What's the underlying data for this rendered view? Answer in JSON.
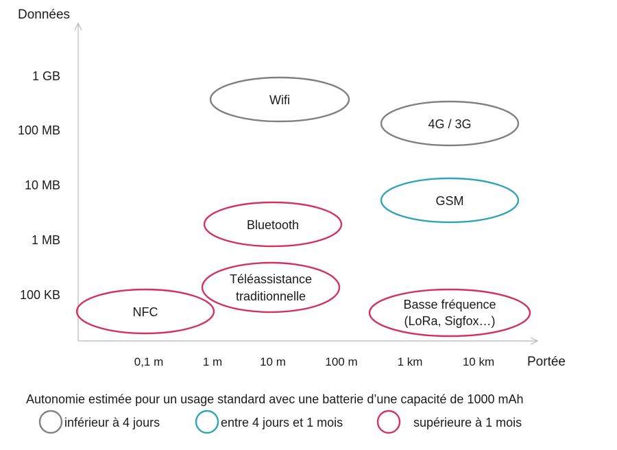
{
  "y_axis": {
    "title": "Données",
    "ticks": [
      "1 GB",
      "100 MB",
      "10 MB",
      "1 MB",
      "100 KB"
    ]
  },
  "x_axis": {
    "title": "Portée",
    "ticks": [
      "0,1 m",
      "1 m",
      "10 m",
      "100 m",
      "1 km",
      "10 km"
    ]
  },
  "categories": {
    "low": {
      "color": "#808080",
      "label": "inférieur à 4 jours"
    },
    "mid": {
      "color": "#2fa3b8",
      "label": "entre 4 jours et 1 mois"
    },
    "high": {
      "color": "#d2325f",
      "label": "supérieure à 1 mois"
    }
  },
  "technologies": [
    {
      "id": "wifi",
      "lines": [
        "Wifi"
      ],
      "category": "low"
    },
    {
      "id": "4g-3g",
      "lines": [
        "4G / 3G"
      ],
      "category": "low"
    },
    {
      "id": "gsm",
      "lines": [
        "GSM"
      ],
      "category": "mid"
    },
    {
      "id": "bluetooth",
      "lines": [
        "Bluetooth"
      ],
      "category": "high"
    },
    {
      "id": "teleassistance",
      "lines": [
        "Téléassistance",
        "traditionnelle"
      ],
      "category": "high"
    },
    {
      "id": "nfc",
      "lines": [
        "NFC"
      ],
      "category": "high"
    },
    {
      "id": "basse-frequence",
      "lines": [
        "Basse fréquence",
        "(LoRa, Sigfox…)"
      ],
      "category": "high"
    }
  ],
  "legend": {
    "caption": "Autonomie estimée pour un usage standard avec une batterie d’une capacité de 1000 mAh",
    "order": [
      "low",
      "mid",
      "high"
    ]
  }
}
